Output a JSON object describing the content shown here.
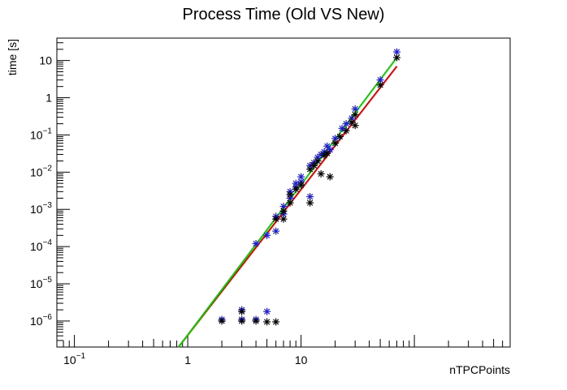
{
  "chart_data": {
    "type": "scatter",
    "title": "Process Time (Old VS New)",
    "xlabel": "nTPCPoints",
    "ylabel": "time [s]",
    "x_scale": "log",
    "y_scale": "log",
    "xlim": [
      0.07,
      700
    ],
    "ylim": [
      2e-07,
      40
    ],
    "grid": false,
    "legend": "none",
    "x_ticks": [
      {
        "value": 0.1,
        "base": "10",
        "exp": "−1"
      },
      {
        "value": 1,
        "label": "1"
      },
      {
        "value": 10,
        "label": "10"
      }
    ],
    "y_ticks": [
      {
        "value": 1e-06,
        "base": "10",
        "exp": "−6"
      },
      {
        "value": 1e-05,
        "base": "10",
        "exp": "−5"
      },
      {
        "value": 0.0001,
        "base": "10",
        "exp": "−4"
      },
      {
        "value": 0.001,
        "base": "10",
        "exp": "−3"
      },
      {
        "value": 0.01,
        "base": "10",
        "exp": "−2"
      },
      {
        "value": 0.1,
        "base": "10",
        "exp": "−1"
      },
      {
        "value": 1,
        "label": "1"
      },
      {
        "value": 10,
        "label": "10"
      }
    ],
    "series": [
      {
        "color": "#1f1fd1",
        "marker": "star",
        "points": [
          [
            2,
            1.1e-06
          ],
          [
            3,
            2e-06
          ],
          [
            3,
            1.1e-06
          ],
          [
            4,
            1.1e-06
          ],
          [
            5,
            1.8e-06
          ],
          [
            4,
            0.00012
          ],
          [
            5,
            0.0002
          ],
          [
            6,
            0.00026
          ],
          [
            6,
            0.00065
          ],
          [
            7,
            0.00075
          ],
          [
            7,
            0.0012
          ],
          [
            8,
            0.002
          ],
          [
            8,
            0.003
          ],
          [
            9,
            0.004
          ],
          [
            9,
            0.005
          ],
          [
            10,
            0.0055
          ],
          [
            10,
            0.0075
          ],
          [
            12,
            0.015
          ],
          [
            12,
            0.0022
          ],
          [
            13,
            0.018
          ],
          [
            14,
            0.025
          ],
          [
            15,
            0.03
          ],
          [
            16,
            0.035
          ],
          [
            17,
            0.05
          ],
          [
            18,
            0.04
          ],
          [
            20,
            0.08
          ],
          [
            23,
            0.15
          ],
          [
            25,
            0.2
          ],
          [
            28,
            0.28
          ],
          [
            30,
            0.5
          ],
          [
            50,
            3.0
          ],
          [
            70,
            17.0
          ]
        ]
      },
      {
        "color": "#000000",
        "marker": "star",
        "points": [
          [
            2,
            1e-06
          ],
          [
            3,
            1e-06
          ],
          [
            3,
            1.8e-06
          ],
          [
            4,
            1e-06
          ],
          [
            5,
            9.5e-07
          ],
          [
            6,
            9.5e-07
          ],
          [
            6,
            0.00055
          ],
          [
            7,
            0.00055
          ],
          [
            7,
            0.0009
          ],
          [
            8,
            0.0015
          ],
          [
            8,
            0.0025
          ],
          [
            9,
            0.0035
          ],
          [
            10,
            0.0045
          ],
          [
            12,
            0.0015
          ],
          [
            12,
            0.012
          ],
          [
            13,
            0.015
          ],
          [
            14,
            0.02
          ],
          [
            15,
            0.009
          ],
          [
            16,
            0.028
          ],
          [
            17,
            0.032
          ],
          [
            18,
            0.0075
          ],
          [
            20,
            0.06
          ],
          [
            22,
            0.09
          ],
          [
            25,
            0.13
          ],
          [
            28,
            0.22
          ],
          [
            30,
            0.18
          ],
          [
            30,
            0.35
          ],
          [
            50,
            2.2
          ],
          [
            70,
            12.0
          ]
        ]
      }
    ],
    "lines": [
      {
        "color": "#e00000",
        "points": [
          [
            0.83,
            2e-07
          ],
          [
            70,
            7.0
          ]
        ]
      },
      {
        "color": "#11cc00",
        "points": [
          [
            0.83,
            2e-07
          ],
          [
            70,
            12.0
          ]
        ]
      }
    ]
  }
}
